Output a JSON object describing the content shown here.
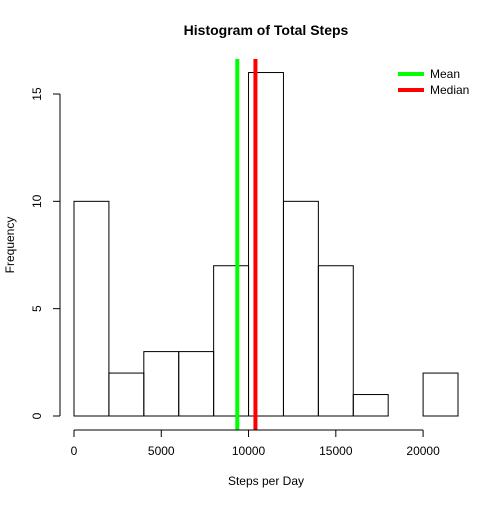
{
  "chart_data": {
    "type": "bar",
    "title": "Histogram of Total Steps",
    "xlabel": "Steps per Day",
    "ylabel": "Frequency",
    "bin_edges": [
      0,
      2000,
      4000,
      6000,
      8000,
      10000,
      12000,
      14000,
      16000,
      18000,
      20000,
      22000
    ],
    "values": [
      10,
      2,
      3,
      3,
      7,
      16,
      10,
      7,
      1,
      0,
      2
    ],
    "xlim": [
      0,
      22000
    ],
    "ylim": [
      0,
      16
    ],
    "x_ticks": [
      0,
      5000,
      10000,
      15000,
      20000
    ],
    "x_tick_labels": [
      "0",
      "5000",
      "10000",
      "15000",
      "20000"
    ],
    "y_ticks": [
      0,
      5,
      10,
      15
    ],
    "y_tick_labels": [
      "0",
      "5",
      "10",
      "15"
    ],
    "reference_lines": [
      {
        "name": "Mean",
        "value": 9354,
        "color": "#00ff00"
      },
      {
        "name": "Median",
        "value": 10395,
        "color": "#ff0000"
      }
    ],
    "legend": {
      "position": "top-right",
      "entries": [
        {
          "label": "Mean",
          "color": "#00ff00"
        },
        {
          "label": "Median",
          "color": "#ff0000"
        }
      ]
    },
    "grid": false
  }
}
